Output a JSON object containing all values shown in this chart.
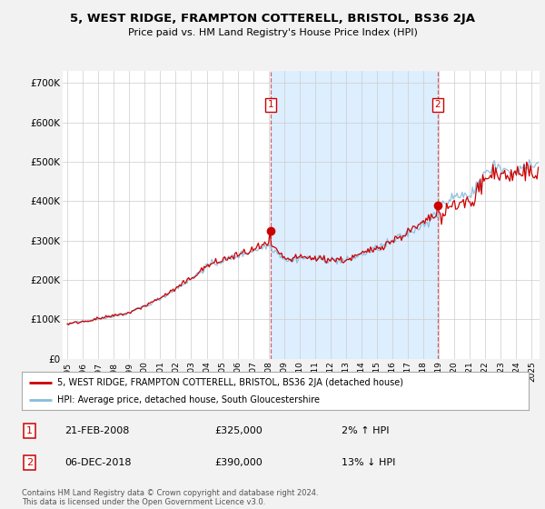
{
  "title": "5, WEST RIDGE, FRAMPTON COTTERELL, BRISTOL, BS36 2JA",
  "subtitle": "Price paid vs. HM Land Registry's House Price Index (HPI)",
  "ylabel_ticks": [
    0,
    100000,
    200000,
    300000,
    400000,
    500000,
    600000,
    700000
  ],
  "ylabel_labels": [
    "£0",
    "£100K",
    "£200K",
    "£300K",
    "£400K",
    "£500K",
    "£600K",
    "£700K"
  ],
  "ylim": [
    0,
    730000
  ],
  "xlim_start": 1994.7,
  "xlim_end": 2025.5,
  "sale1_date": 2008.12,
  "sale1_price": 325000,
  "sale1_label": "1",
  "sale1_display": "21-FEB-2008",
  "sale1_display_price": "£325,000",
  "sale1_hpi_rel": "2% ↑ HPI",
  "sale2_date": 2018.92,
  "sale2_price": 390000,
  "sale2_label": "2",
  "sale2_display": "06-DEC-2018",
  "sale2_display_price": "£390,000",
  "sale2_hpi_rel": "13% ↓ HPI",
  "house_color": "#cc0000",
  "hpi_color": "#88bbdd",
  "shade_color": "#ddeeff",
  "legend_house": "5, WEST RIDGE, FRAMPTON COTTERELL, BRISTOL, BS36 2JA (detached house)",
  "legend_hpi": "HPI: Average price, detached house, South Gloucestershire",
  "footnote": "Contains HM Land Registry data © Crown copyright and database right 2024.\nThis data is licensed under the Open Government Licence v3.0.",
  "background_color": "#f2f2f2",
  "plot_background": "#ffffff",
  "grid_color": "#cccccc"
}
